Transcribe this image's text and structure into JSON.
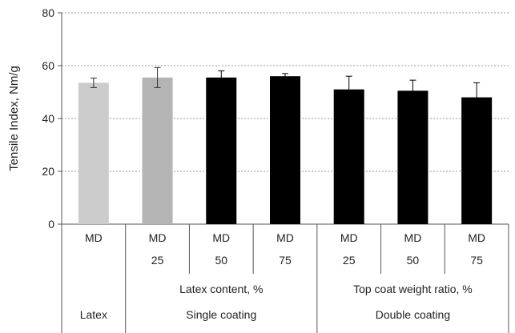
{
  "chart_data": {
    "type": "bar",
    "ylabel": "Tensile Index, Nm/g",
    "ylim": [
      0,
      80
    ],
    "yticks": [
      0,
      20,
      40,
      60,
      80
    ],
    "grid": true,
    "grid_style": "dashed horizontal",
    "categories": [
      "MD",
      "MD",
      "MD",
      "MD",
      "MD",
      "MD",
      "MD"
    ],
    "values": [
      53.5,
      55.5,
      55.5,
      56.0,
      51.0,
      50.5,
      48.0
    ],
    "errors": [
      1.8,
      3.8,
      2.5,
      1.0,
      5.0,
      4.0,
      5.5
    ],
    "colors": [
      "#cccccc",
      "#b4b4b4",
      "#000000",
      "#000000",
      "#000000",
      "#000000",
      "#000000"
    ],
    "x_levels": [
      [
        "MD",
        "MD",
        "MD",
        "MD",
        "MD",
        "MD",
        "MD"
      ],
      [
        "",
        "25",
        "50",
        "75",
        "25",
        "50",
        "75"
      ]
    ],
    "groups": [
      {
        "label": "Latex content, %",
        "span": [
          1,
          3
        ]
      },
      {
        "label": "Top coat weight ratio, %",
        "span": [
          4,
          6
        ]
      }
    ],
    "supergroups": [
      {
        "label": "Latex",
        "span": [
          0,
          0
        ]
      },
      {
        "label": "Single coating",
        "span": [
          1,
          3
        ]
      },
      {
        "label": "Double coating",
        "span": [
          4,
          6
        ]
      }
    ]
  }
}
